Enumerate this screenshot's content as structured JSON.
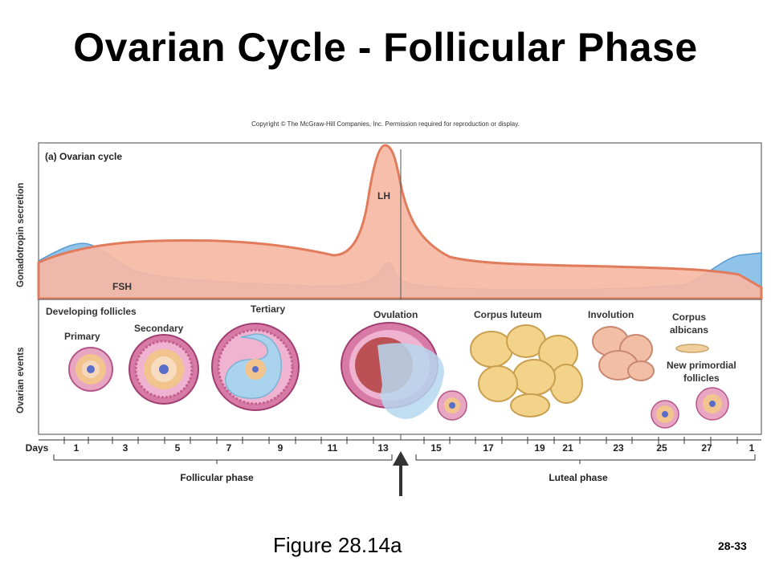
{
  "title": "Ovarian Cycle - Follicular Phase",
  "copyright": "Copyright © The McGraw-Hill Companies, Inc. Permission required for reproduction or display.",
  "panel_label": "(a) Ovarian cycle",
  "y_axis_labels": {
    "top": "Gonadotropin secretion",
    "bottom": "Ovarian events"
  },
  "hormones": {
    "lh": {
      "label": "LH",
      "color": "#f6b9a4",
      "line_color": "#e07b5c"
    },
    "fsh": {
      "label": "FSH",
      "color": "#8fc3ea",
      "line_color": "#5b9bd0"
    }
  },
  "events": {
    "developing": "Developing follicles",
    "primary": "Primary",
    "secondary": "Secondary",
    "tertiary": "Tertiary",
    "ovulation": "Ovulation",
    "corpus_luteum": "Corpus luteum",
    "involution": "Involution",
    "corpus_albicans": "Corpus\nalbicans",
    "new_primordial": "New primordial\nfollicles"
  },
  "days_label": "Days",
  "days": [
    "1",
    "3",
    "5",
    "7",
    "9",
    "11",
    "13",
    "15",
    "17",
    "19",
    "21",
    "23",
    "25",
    "27",
    "1"
  ],
  "phases": {
    "follicular": "Follicular phase",
    "luteal": "Luteal phase"
  },
  "figure_caption": "Figure 28.14a",
  "page_number": "28-33"
}
